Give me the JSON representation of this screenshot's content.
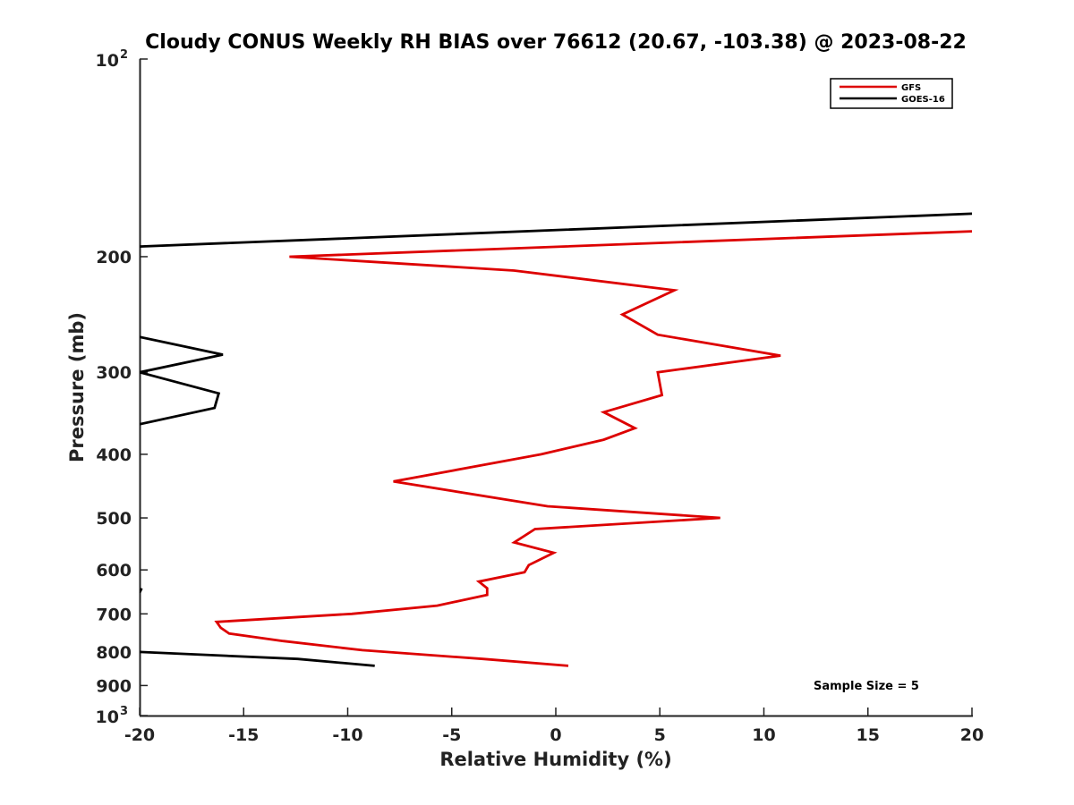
{
  "chart_data": {
    "type": "line",
    "title": "Cloudy CONUS Weekly RH BIAS over 76612 (20.67, -103.38) @ 2023-08-22",
    "xlabel": "Relative Humidity (%)",
    "ylabel": "Pressure (mb)",
    "xlim": [
      -20,
      20
    ],
    "ylim": [
      100,
      1000
    ],
    "y_scale": "log",
    "y_reversed": true,
    "x_ticks": [
      "-20",
      "-15",
      "-10",
      "-5",
      "0",
      "5",
      "10",
      "15",
      "20"
    ],
    "y_ticks": [
      {
        "value": 200,
        "label": "200"
      },
      {
        "value": 300,
        "label": "300"
      },
      {
        "value": 400,
        "label": "400"
      },
      {
        "value": 500,
        "label": "500"
      },
      {
        "value": 600,
        "label": "600"
      },
      {
        "value": 700,
        "label": "700"
      },
      {
        "value": 800,
        "label": "800"
      },
      {
        "value": 900,
        "label": "900"
      }
    ],
    "y_power_ticks": [
      {
        "value": 100,
        "base": "10",
        "exp": "2"
      },
      {
        "value": 1000,
        "base": "10",
        "exp": "3"
      }
    ],
    "grid": false,
    "legend_position": "top-right",
    "annotation": "Sample Size = 5",
    "series": [
      {
        "name": "GFS",
        "color": "#dd0000",
        "x": [
          20.0,
          -12.8,
          -2.0,
          5.7,
          3.2,
          4.9,
          10.8,
          4.9,
          5.1,
          2.3,
          3.8,
          2.3,
          -0.7,
          -7.8,
          -0.4,
          7.9,
          -1.0,
          -2.0,
          -0.1,
          -1.3,
          -1.5,
          -3.7,
          -3.3,
          -3.3,
          -5.7,
          -9.8,
          -16.3,
          -16.1,
          -15.7,
          -13.1,
          -9.3,
          -3.5,
          0.6
        ],
        "y": [
          183,
          200,
          210,
          225,
          245,
          263,
          283,
          300,
          325,
          345,
          365,
          380,
          400,
          440,
          480,
          500,
          520,
          545,
          565,
          590,
          605,
          625,
          640,
          655,
          680,
          700,
          720,
          735,
          750,
          770,
          795,
          820,
          840
        ]
      },
      {
        "name": "GOES-16",
        "color": "#000000",
        "x": [
          20.0,
          -20.0,
          null,
          -20.0,
          -16.0,
          -20.0,
          -16.2,
          -16.4,
          -20.0,
          null,
          -19.9,
          -20.0,
          null,
          -20.0,
          -12.4,
          -8.7
        ],
        "y": [
          172,
          193,
          null,
          265,
          282,
          300,
          323,
          340,
          360,
          null,
          640,
          650,
          null,
          800,
          820,
          840
        ]
      }
    ]
  }
}
